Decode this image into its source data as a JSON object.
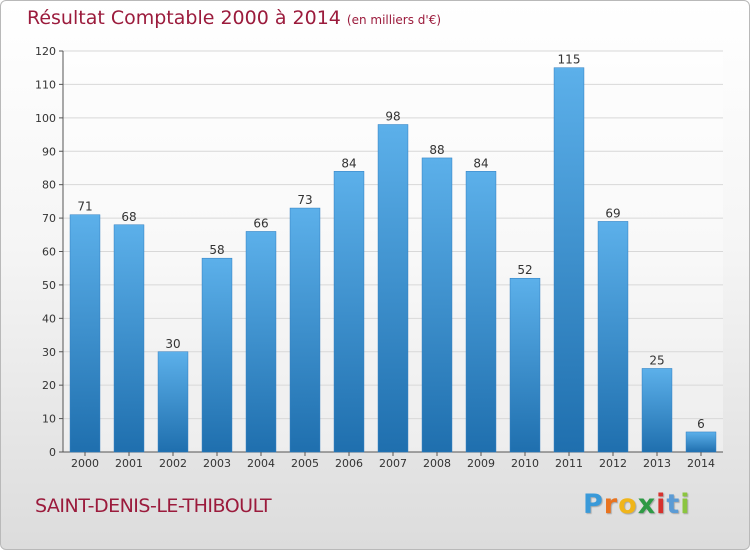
{
  "header": {
    "title": "Résultat Comptable 2000 à 2014",
    "unit": "(en milliers d'€)"
  },
  "footer": {
    "location": "SAINT-DENIS-LE-THIBOULT",
    "brand": {
      "letters": [
        "P",
        "r",
        "o",
        "x",
        "i",
        "t",
        "i"
      ],
      "colors": [
        "#3a9ad9",
        "#e8731f",
        "#f0b51a",
        "#2e9a45",
        "#d6312d",
        "#5b9bd5",
        "#8bc53f"
      ]
    }
  },
  "colors": {
    "title": "#9b1b3c",
    "bar_top": "#5cb0ea",
    "bar_bottom": "#1f6fae",
    "grid": "#d8d8d8",
    "axis": "#555555",
    "label": "#333333"
  },
  "chart_data": {
    "type": "bar",
    "title": "Résultat Comptable 2000 à 2014",
    "subtitle": "(en milliers d'€)",
    "categories": [
      "2000",
      "2001",
      "2002",
      "2003",
      "2004",
      "2005",
      "2006",
      "2007",
      "2008",
      "2009",
      "2010",
      "2011",
      "2012",
      "2013",
      "2014"
    ],
    "values": [
      71,
      68,
      30,
      58,
      66,
      73,
      84,
      98,
      88,
      84,
      52,
      115,
      69,
      25,
      6
    ],
    "ylim": [
      0,
      120
    ],
    "yticks": [
      0,
      10,
      20,
      30,
      40,
      50,
      60,
      70,
      80,
      90,
      100,
      110,
      120
    ],
    "grid": true,
    "data_labels": true,
    "xlabel": "",
    "ylabel": ""
  }
}
